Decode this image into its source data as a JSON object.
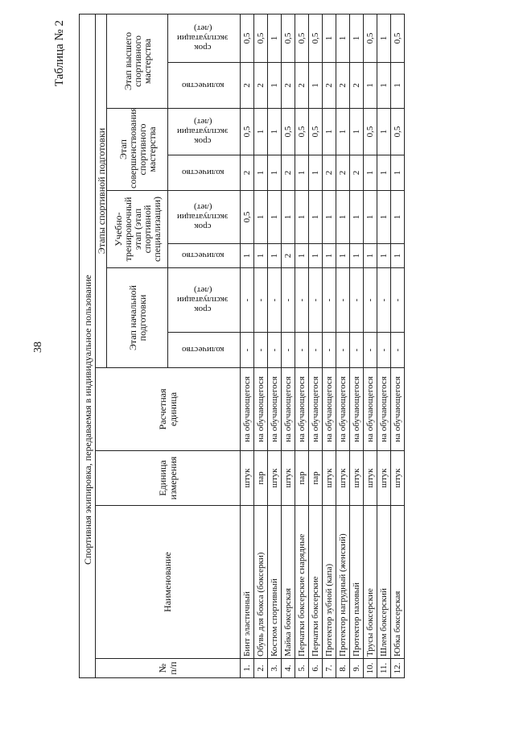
{
  "page_number": "38",
  "table_title": "Таблица № 2",
  "header": {
    "title": "Спортивная экипировка, передаваемая в индивидуальное пользование",
    "num": "№\nп/п",
    "name": "Наименование",
    "unit": "Единица\nизмерения",
    "calc_unit": "Расчетная\nединица",
    "stages_group": "Этапы спортивной подготовки",
    "stages": [
      "Этап начальной подготовки",
      "Учебно-тренировочный этап (этап спортивной специализации)",
      "Этап совершенствования спортивного мастерства",
      "Этап высшего спортивного мастерства"
    ],
    "qty": "количество",
    "term": "срок\nэксплуатации\n(лет)"
  },
  "rows": [
    {
      "num": "1.",
      "name": "Бинт эластичный",
      "unit": "штук",
      "calc": "на обучающегося",
      "v": [
        "-",
        "-",
        "1",
        "0,5",
        "2",
        "0,5",
        "2",
        "0,5"
      ]
    },
    {
      "num": "2.",
      "name": "Обувь для бокса (боксерки)",
      "unit": "пар",
      "calc": "на обучающегося",
      "v": [
        "-",
        "-",
        "1",
        "1",
        "1",
        "1",
        "2",
        "0,5"
      ]
    },
    {
      "num": "3.",
      "name": "Костюм спортивный",
      "unit": "штук",
      "calc": "на обучающегося",
      "v": [
        "-",
        "-",
        "1",
        "1",
        "1",
        "1",
        "1",
        "1"
      ]
    },
    {
      "num": "4.",
      "name": "Майка боксерская",
      "unit": "штук",
      "calc": "на обучающегося",
      "v": [
        "-",
        "-",
        "2",
        "1",
        "2",
        "0,5",
        "2",
        "0,5"
      ]
    },
    {
      "num": "5.",
      "name": "Перчатки боксерские снарядные",
      "unit": "пар",
      "calc": "на обучающегося",
      "v": [
        "-",
        "-",
        "1",
        "1",
        "1",
        "0,5",
        "2",
        "0,5"
      ]
    },
    {
      "num": "6.",
      "name": "Перчатки боксерские",
      "unit": "пар",
      "calc": "на обучающегося",
      "v": [
        "-",
        "-",
        "1",
        "1",
        "1",
        "0,5",
        "1",
        "0,5"
      ]
    },
    {
      "num": "7.",
      "name": "Протектор зубной (капа)",
      "unit": "штук",
      "calc": "на обучающегося",
      "v": [
        "-",
        "-",
        "1",
        "1",
        "2",
        "1",
        "2",
        "1"
      ]
    },
    {
      "num": "8.",
      "name": "Протектор нагрудный (женский)",
      "unit": "штук",
      "calc": "на обучающегося",
      "v": [
        "-",
        "-",
        "1",
        "1",
        "2",
        "1",
        "2",
        "1"
      ]
    },
    {
      "num": "9.",
      "name": "Протектор паховый",
      "unit": "штук",
      "calc": "на обучающегося",
      "v": [
        "-",
        "-",
        "1",
        "1",
        "2",
        "1",
        "2",
        "1"
      ]
    },
    {
      "num": "10.",
      "name": "Трусы боксерские",
      "unit": "штук",
      "calc": "на обучающегося",
      "v": [
        "-",
        "-",
        "1",
        "1",
        "1",
        "0,5",
        "1",
        "0,5"
      ]
    },
    {
      "num": "11.",
      "name": "Шлем боксерский",
      "unit": "штук",
      "calc": "на обучающегося",
      "v": [
        "-",
        "-",
        "1",
        "1",
        "1",
        "1",
        "1",
        "1"
      ]
    },
    {
      "num": "12.",
      "name": "Юбка боксерская",
      "unit": "штук",
      "calc": "на обучающегося",
      "v": [
        "-",
        "-",
        "1",
        "1",
        "1",
        "0,5",
        "1",
        "0,5"
      ]
    }
  ]
}
